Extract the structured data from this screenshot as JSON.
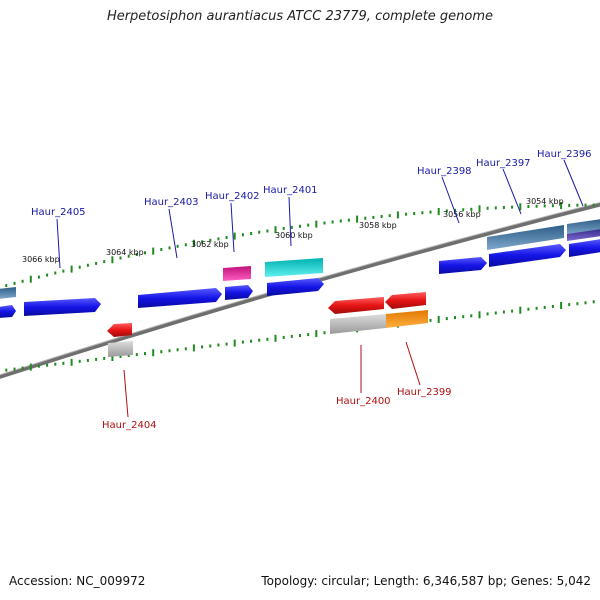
{
  "title": "Herpetosiphon aurantiacus ATCC 23779, complete genome",
  "footer": {
    "accession": "Accession: NC_009972",
    "topology": "Topology: circular; Length: 6,346,587 bp; Genes: 5,042"
  },
  "scale_labels": [
    {
      "text": "3066 kbp",
      "pos": 3066
    },
    {
      "text": "3064 kbp",
      "pos": 3064
    },
    {
      "text": "3062 kbp",
      "pos": 3062
    },
    {
      "text": "3060 kbp",
      "pos": 3060
    },
    {
      "text": "3058 kbp",
      "pos": 3058
    },
    {
      "text": "3056 kbp",
      "pos": 3056
    },
    {
      "text": "3054 kbp",
      "pos": 3054
    }
  ],
  "gene_labels": [
    {
      "name": "Haur_2405",
      "strand": "plus"
    },
    {
      "name": "Haur_2404",
      "strand": "minus"
    },
    {
      "name": "Haur_2403",
      "strand": "plus"
    },
    {
      "name": "Haur_2402",
      "strand": "plus"
    },
    {
      "name": "Haur_2401",
      "strand": "plus"
    },
    {
      "name": "Haur_2400",
      "strand": "minus"
    },
    {
      "name": "Haur_2399",
      "strand": "minus"
    },
    {
      "name": "Haur_2398",
      "strand": "plus"
    },
    {
      "name": "Haur_2397",
      "strand": "plus"
    },
    {
      "name": "Haur_2396",
      "strand": "plus"
    }
  ],
  "colors": {
    "cds_plus": "#1414e6",
    "cds_minus": "#e61414",
    "ruler_tick": "#1f8a1f",
    "backbone": "#808080"
  }
}
